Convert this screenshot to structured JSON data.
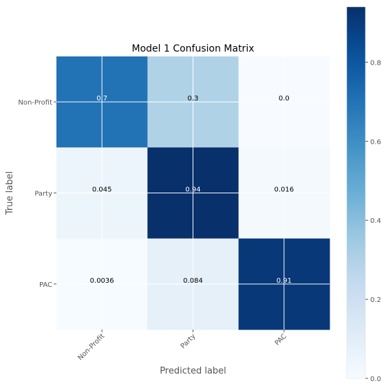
{
  "chart_data": {
    "type": "heatmap",
    "title": "Model 1 Confusion Matrix",
    "xlabel": "Predicted label",
    "ylabel": "True label",
    "x_categories": [
      "Non-Profit",
      "Party",
      "PAC"
    ],
    "y_categories": [
      "Non-Profit",
      "Party",
      "PAC"
    ],
    "values": [
      [
        0.7,
        0.3,
        0.0
      ],
      [
        0.045,
        0.94,
        0.016
      ],
      [
        0.0036,
        0.084,
        0.91
      ]
    ],
    "cell_labels": [
      [
        "0.7",
        "0.3",
        "0.0"
      ],
      [
        "0.045",
        "0.94",
        "0.016"
      ],
      [
        "0.0036",
        "0.084",
        "0.91"
      ]
    ],
    "colormap": "Blues",
    "color_range": [
      0,
      0.94
    ],
    "colorbar_ticks": [
      {
        "value": 0.0,
        "label": "0.0"
      },
      {
        "value": 0.2,
        "label": "0.2"
      },
      {
        "value": 0.4,
        "label": "0.4"
      },
      {
        "value": 0.6,
        "label": "0.6"
      },
      {
        "value": 0.8,
        "label": "0.8"
      }
    ],
    "grid": true,
    "grid_color": "#ffffff",
    "text_color_light": "#ffffff",
    "text_color_dark": "#000000",
    "x_tick_rotation_deg": 45
  }
}
